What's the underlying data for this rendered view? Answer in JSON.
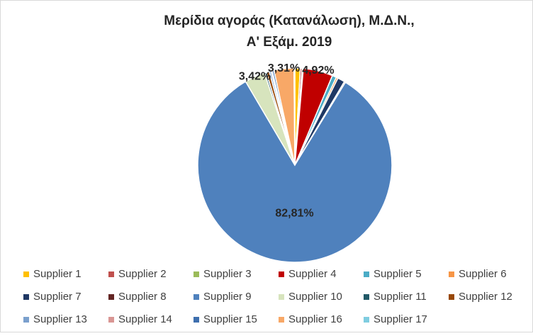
{
  "chart_data": {
    "type": "pie",
    "title": "Μερίδια αγοράς (Κατανάλωση), Μ.Δ.Ν.,",
    "subtitle": "Α' Εξάμ. 2019",
    "categories": [
      "Supplier 1",
      "Supplier 2",
      "Supplier 3",
      "Supplier 4",
      "Supplier 5",
      "Supplier 6",
      "Supplier 7",
      "Supplier 8",
      "Supplier 9",
      "Supplier 10",
      "Supplier 11",
      "Supplier 12",
      "Supplier 13",
      "Supplier 14",
      "Supplier 15",
      "Supplier 16",
      "Supplier 17"
    ],
    "values": [
      0.9,
      0.3,
      0.2,
      4.92,
      0.7,
      0.3,
      1.2,
      0.2,
      82.81,
      3.42,
      0.3,
      0.5,
      0.3,
      0.2,
      0.3,
      3.31,
      0.14
    ],
    "value_labels": [
      null,
      null,
      null,
      "4,92%",
      null,
      null,
      null,
      null,
      "82,81%",
      "3,42%",
      null,
      null,
      null,
      null,
      null,
      "3,31%",
      null
    ],
    "colors": [
      "#ffc000",
      "#c0504d",
      "#9bbb59",
      "#c00000",
      "#4bacc6",
      "#f79646",
      "#1f3864",
      "#632523",
      "#4f81bd",
      "#d7e4bd",
      "#215967",
      "#984807",
      "#7ba0cd",
      "#d99694",
      "#3e6fae",
      "#f8a867",
      "#7fcde0"
    ],
    "legend": "bottom"
  }
}
